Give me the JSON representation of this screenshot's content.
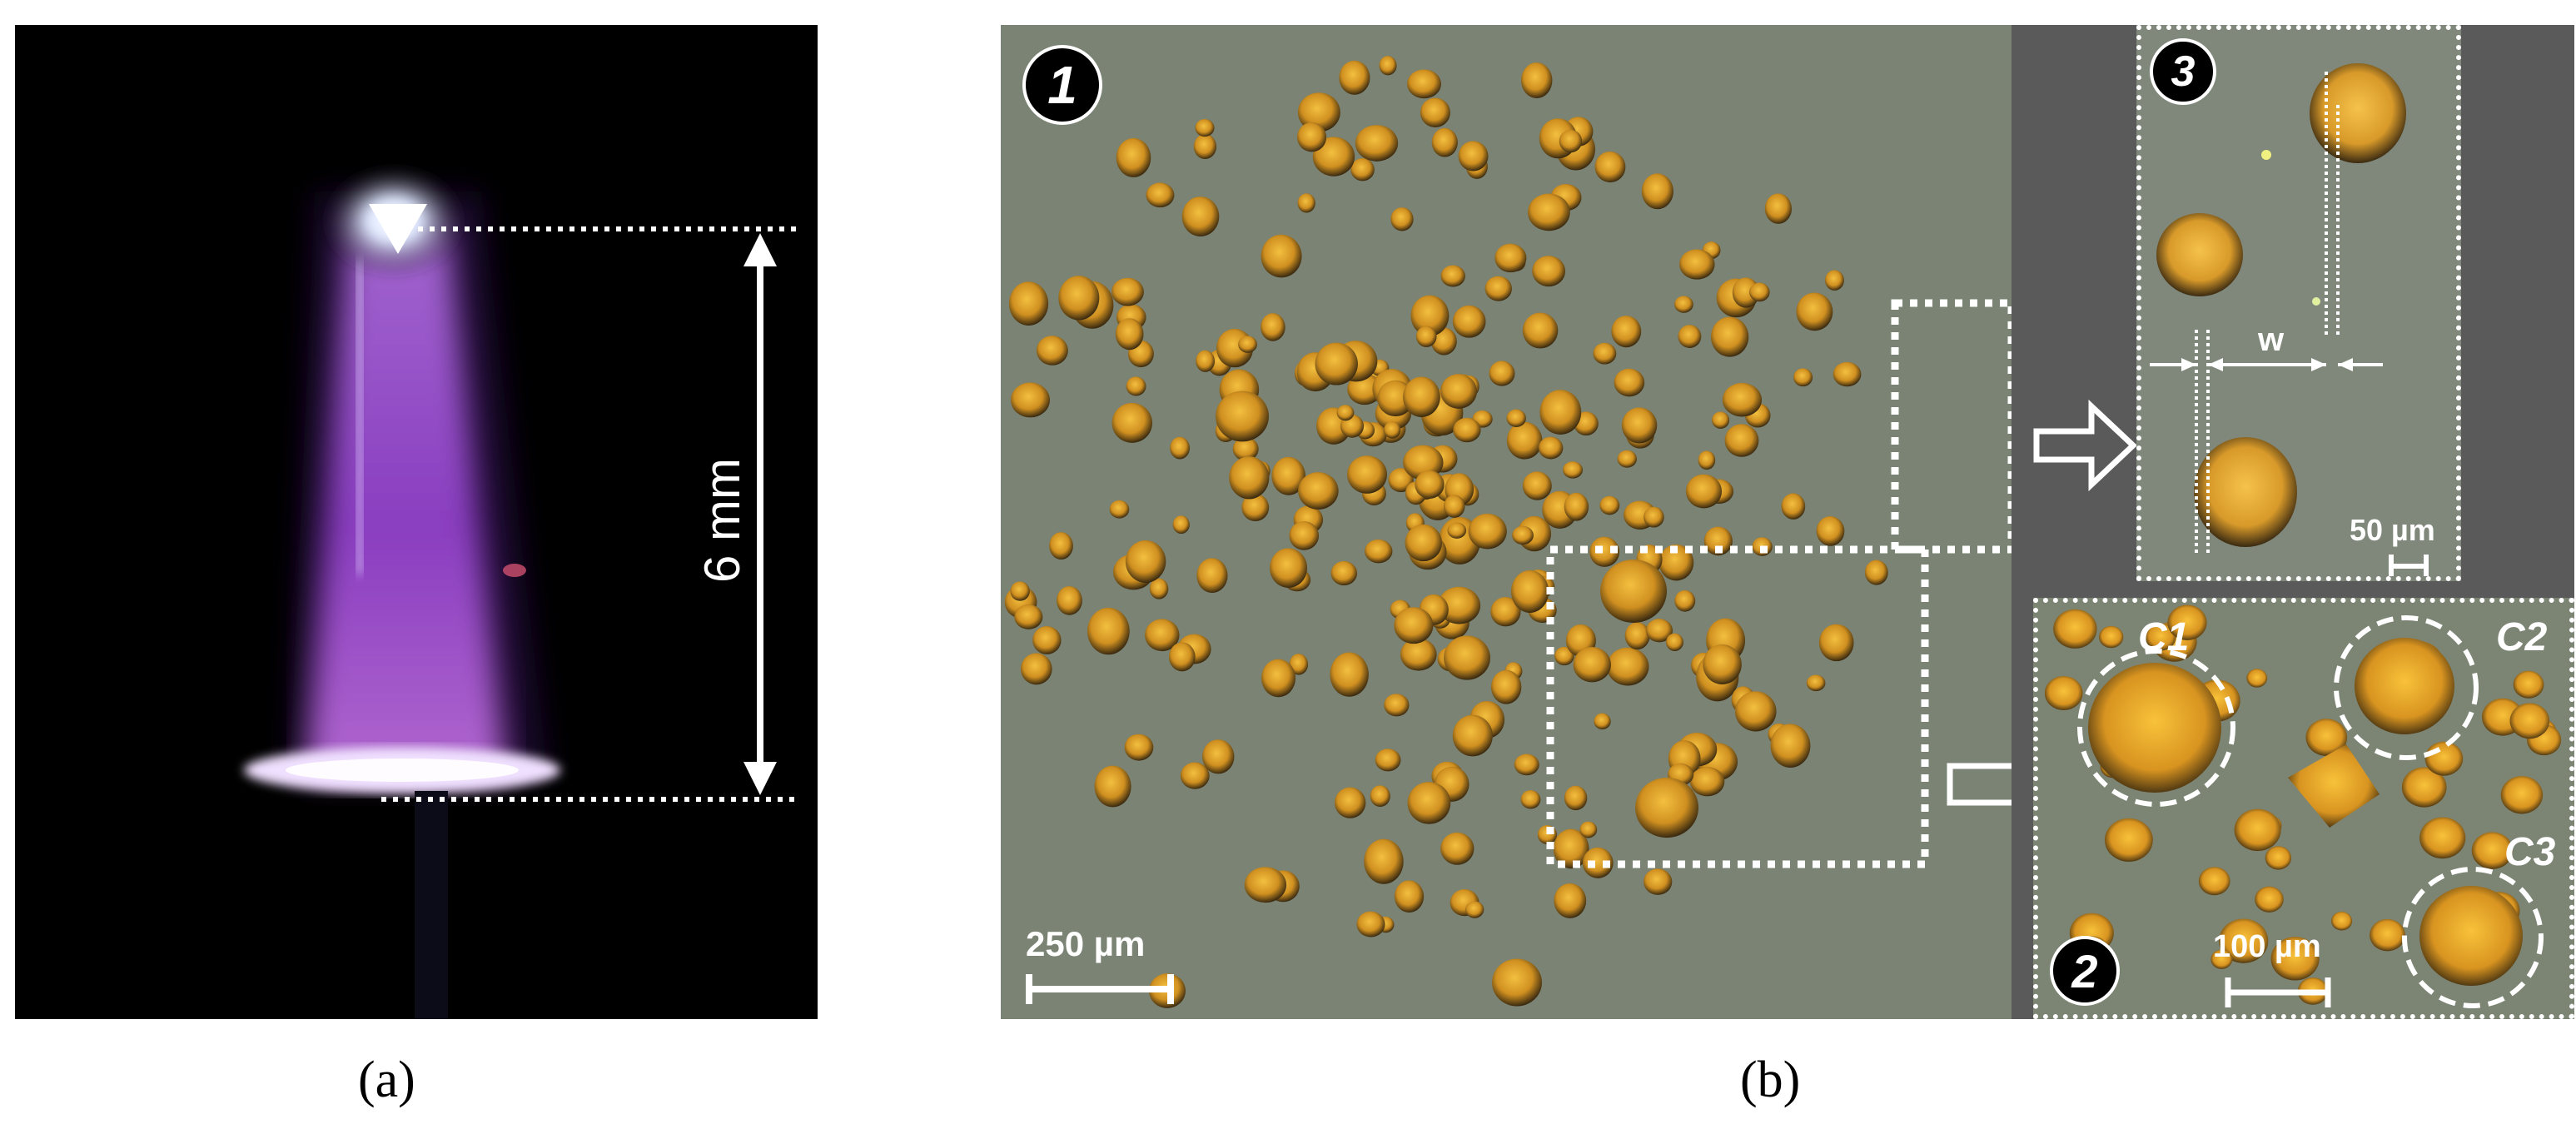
{
  "panel_a": {
    "caption": "(a)",
    "measurement_label": "6 mm"
  },
  "panel_b": {
    "caption": "(b)",
    "main_badge": "1",
    "main_scale_label": "250 µm",
    "inset3": {
      "badge": "3",
      "width_label": "w",
      "scale_label": "50 µm"
    },
    "inset2": {
      "badge": "2",
      "scale_label": "100 µm",
      "circle_labels": [
        "C1",
        "C2",
        "C3"
      ]
    }
  },
  "colors": {
    "plasma": "#a050d0",
    "spot": "#e0a020",
    "substrate": "#7b8474"
  }
}
